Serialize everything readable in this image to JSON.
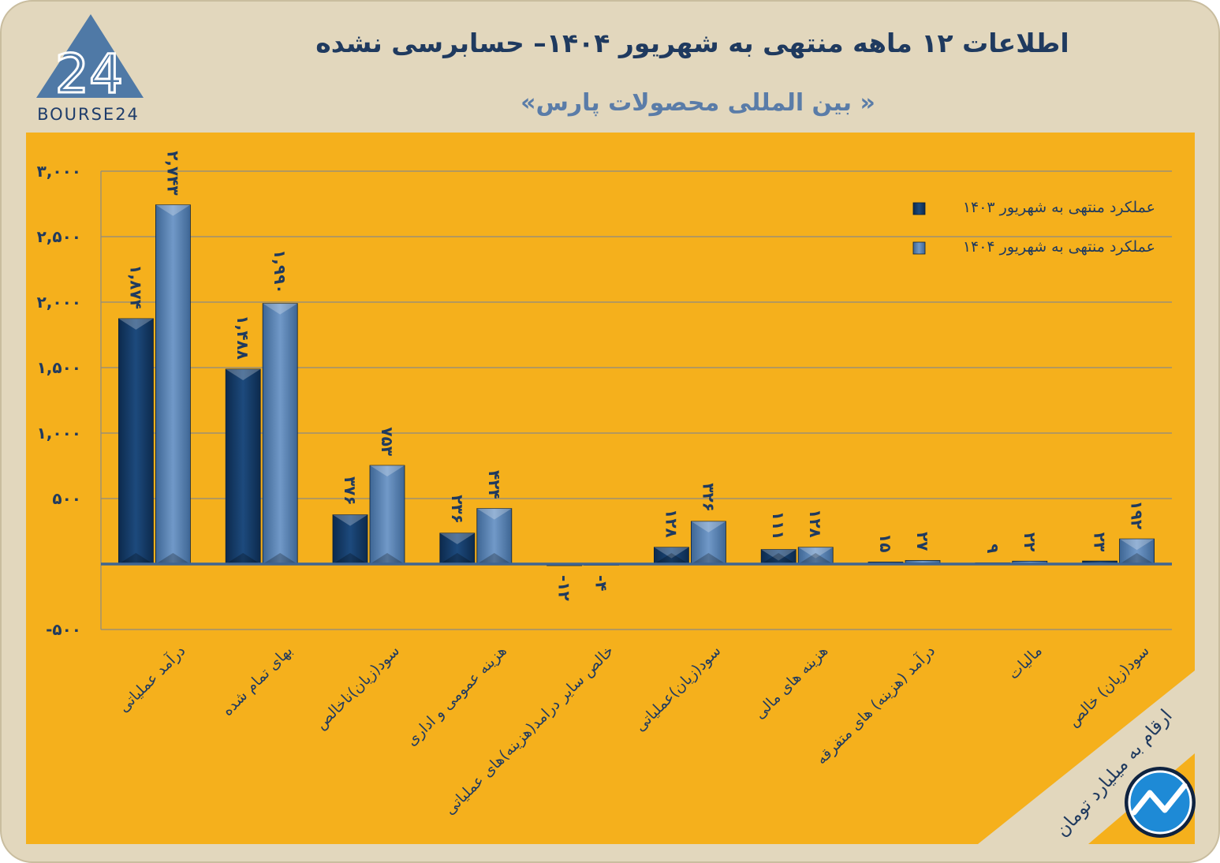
{
  "header": {
    "title": "اطلاعات ۱۲ ماهه منتهی به شهریور ۱۴۰۴– حسابرسی نشده",
    "subtitle": "« بین المللی محصولات پارس»"
  },
  "logo": {
    "text": "BOURSE24",
    "mark": "24"
  },
  "units_note": "ارقام به میلیارد تومان",
  "colors": {
    "background": "#e2d7bd",
    "plot_panel": "#f5b01c",
    "series_1403": "#12365f",
    "series_1404": "#5078a8",
    "text": "#1f3a5f",
    "grid": "#8c8a84"
  },
  "chart_data": {
    "type": "bar",
    "ylim": [
      -500,
      3000
    ],
    "yticks": [
      {
        "value": -500,
        "label": "-۵۰۰"
      },
      {
        "value": 0,
        "label": ""
      },
      {
        "value": 500,
        "label": "۵۰۰"
      },
      {
        "value": 1000,
        "label": "۱,۰۰۰"
      },
      {
        "value": 1500,
        "label": "۱,۵۰۰"
      },
      {
        "value": 2000,
        "label": "۲,۰۰۰"
      },
      {
        "value": 2500,
        "label": "۲,۵۰۰"
      },
      {
        "value": 3000,
        "label": "۳,۰۰۰"
      }
    ],
    "grid": true,
    "legend_position": "top-right",
    "categories": [
      "درآمد عملیاتی",
      "بهای تمام شده",
      "سود(زیان)ناخالص",
      "هزینه عمومی و اداری",
      "خالص سایر درامد(هزینه)های عملیاتی",
      "سود(زیان)عملیاتی",
      "هزینه های مالی",
      "درآمد (هزینه) های متفرقه",
      "مالیات",
      "سود(زیان) خالص"
    ],
    "series": [
      {
        "name": "عملکرد منتهی به شهریور ۱۴۰۳",
        "values": [
          1874,
          1488,
          376,
          236,
          -12,
          128,
          111,
          15,
          9,
          23
        ],
        "labels": [
          "۱,۸۷۴",
          "۱,۴۸۸",
          "۳۷۶",
          "۲۳۶",
          "-۱۲",
          "۱۲۸",
          "۱۱۱",
          "۱۵",
          "۹",
          "۲۳"
        ]
      },
      {
        "name": "عملکرد منتهی به شهریور ۱۴۰۴",
        "values": [
          2743,
          1990,
          753,
          424,
          -4,
          326,
          128,
          27,
          22,
          192
        ],
        "labels": [
          "۲,۷۴۳",
          "۱,۹۹۰",
          "۷۵۳",
          "۴۲۴",
          "-۴",
          "۳۲۶",
          "۱۲۸",
          "۲۷",
          "۲۲",
          "۱۹۲"
        ]
      }
    ]
  }
}
